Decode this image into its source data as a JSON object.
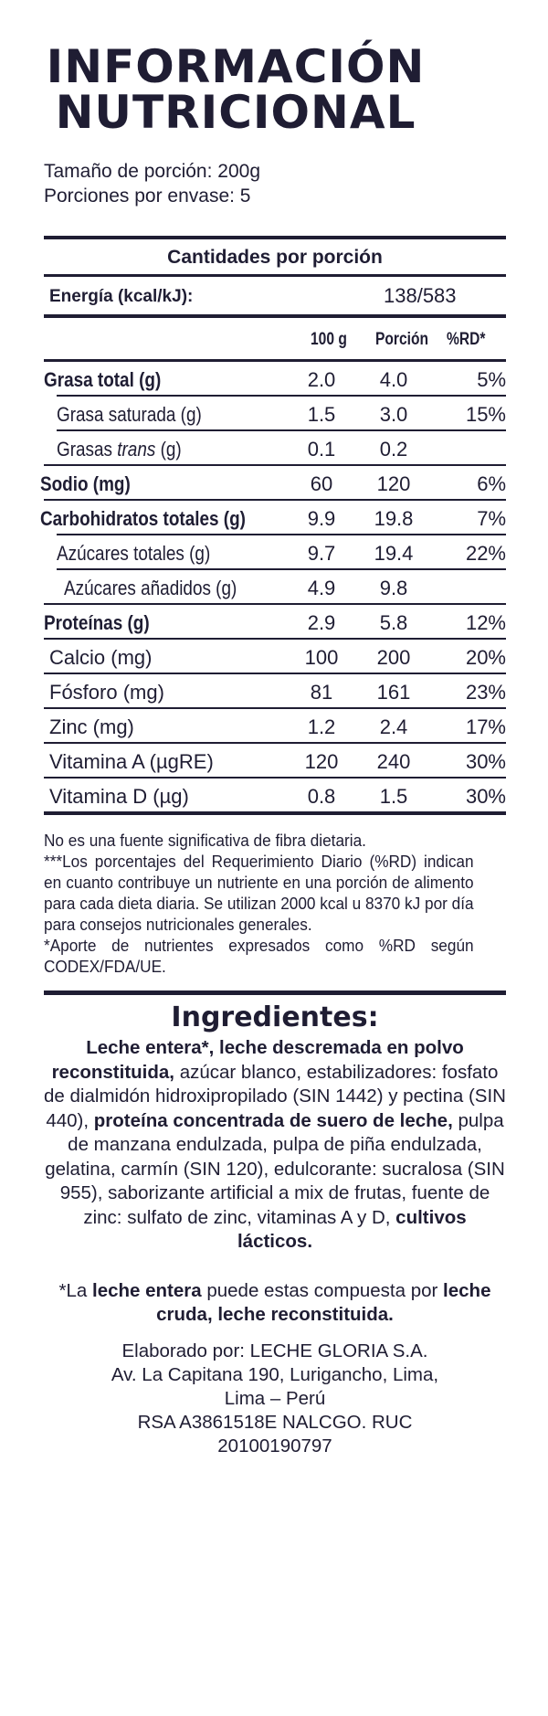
{
  "title_line1": "INFORMACIÓN",
  "title_line2": "NUTRICIONAL",
  "serving_size": "Tamaño de porción: 200g",
  "servings_per_pack": "Porciones por envase: 5",
  "amounts_header": "Cantidades por porción",
  "energy": {
    "label": "Energía (kcal/kJ):",
    "value": "138/583"
  },
  "columns": {
    "per100": "100 g",
    "portion": "Porción",
    "rd": "%RD*"
  },
  "rows": [
    {
      "label": "Grasa total (g)",
      "per100": "2.0",
      "portion": "4.0",
      "rd": "5%",
      "bold": true
    },
    {
      "label": "Grasa saturada (g)",
      "per100": "1.5",
      "portion": "3.0",
      "rd": "15%"
    },
    {
      "label_prefix": "Grasas ",
      "label_italic": "trans",
      "label_suffix": " (g)",
      "per100": "0.1",
      "portion": "0.2",
      "rd": ""
    },
    {
      "label": "Sodio (mg)",
      "per100": "60",
      "portion": "120",
      "rd": "6%",
      "bold": true
    },
    {
      "label": "Carbohidratos totales (g)",
      "per100": "9.9",
      "portion": "19.8",
      "rd": "7%",
      "bold": true
    },
    {
      "label": "Azúcares totales (g)",
      "per100": "9.7",
      "portion": "19.4",
      "rd": "22%"
    },
    {
      "label": "Azúcares añadidos (g)",
      "per100": "4.9",
      "portion": "9.8",
      "rd": ""
    },
    {
      "label": "Proteínas (g)",
      "per100": "2.9",
      "portion": "5.8",
      "rd": "12%",
      "bold": true
    },
    {
      "label": "Calcio (mg)",
      "per100": "100",
      "portion": "200",
      "rd": "20%"
    },
    {
      "label": "Fósforo (mg)",
      "per100": "81",
      "portion": "161",
      "rd": "23%"
    },
    {
      "label": "Zinc (mg)",
      "per100": "1.2",
      "portion": "2.4",
      "rd": "17%"
    },
    {
      "label": "Vitamina A (µgRE)",
      "per100": "120",
      "portion": "240",
      "rd": "30%"
    },
    {
      "label": "Vitamina D (µg)",
      "per100": "0.8",
      "portion": "1.5",
      "rd": "30%"
    }
  ],
  "footnote_fiber": "No es una fuente significativa de fibra dietaria.",
  "footnote_rd": "***Los porcentajes del Requerimiento Diario (%RD) indican en cuanto contribuye un nutriente en una porción de alimento para cada dieta diaria. Se utilizan 2000 kcal u 8370 kJ por día para consejos nutricionales generales.",
  "footnote_codex": "*Aporte de nutrientes expresados como %RD según CODEX/FDA/UE.",
  "ingredients_title": "Ingredientes:",
  "ingredients": [
    {
      "text": "Leche entera*, leche descremada en polvo reconstituida,",
      "bold": true
    },
    {
      "text": " azúcar blanco, estabilizadores: fosfato de dialmidón hidroxipropilado (SIN 1442) y pectina (SIN 440), ",
      "bold": false
    },
    {
      "text": "proteína concentrada de suero de leche,",
      "bold": true
    },
    {
      "text": " pulpa de manzana endulzada, pulpa de piña endulzada,  gelatina, carmín (SIN 120),  edulcorante: sucralosa (SIN 955), saborizante artificial a mix de frutas,  fuente de zinc: sulfato de zinc, vitaminas A y D, ",
      "bold": false
    },
    {
      "text": "cultivos lácticos.",
      "bold": true
    }
  ],
  "note": [
    {
      "text": "*La ",
      "bold": false
    },
    {
      "text": "leche entera",
      "bold": true
    },
    {
      "text": " puede estas compuesta por ",
      "bold": false
    },
    {
      "text": "leche cruda, leche reconstituida.",
      "bold": true
    }
  ],
  "maker_line1": "Elaborado por: LECHE GLORIA S.A.",
  "maker_line2": "Av. La Capitana 190, Lurigancho, Lima,",
  "maker_line3": "Lima – Perú",
  "maker_line4": "RSA A3861518E NALCGO. RUC",
  "maker_line5": "20100190797",
  "colors": {
    "ink": "#1f1d33",
    "background": "#ffffff"
  }
}
